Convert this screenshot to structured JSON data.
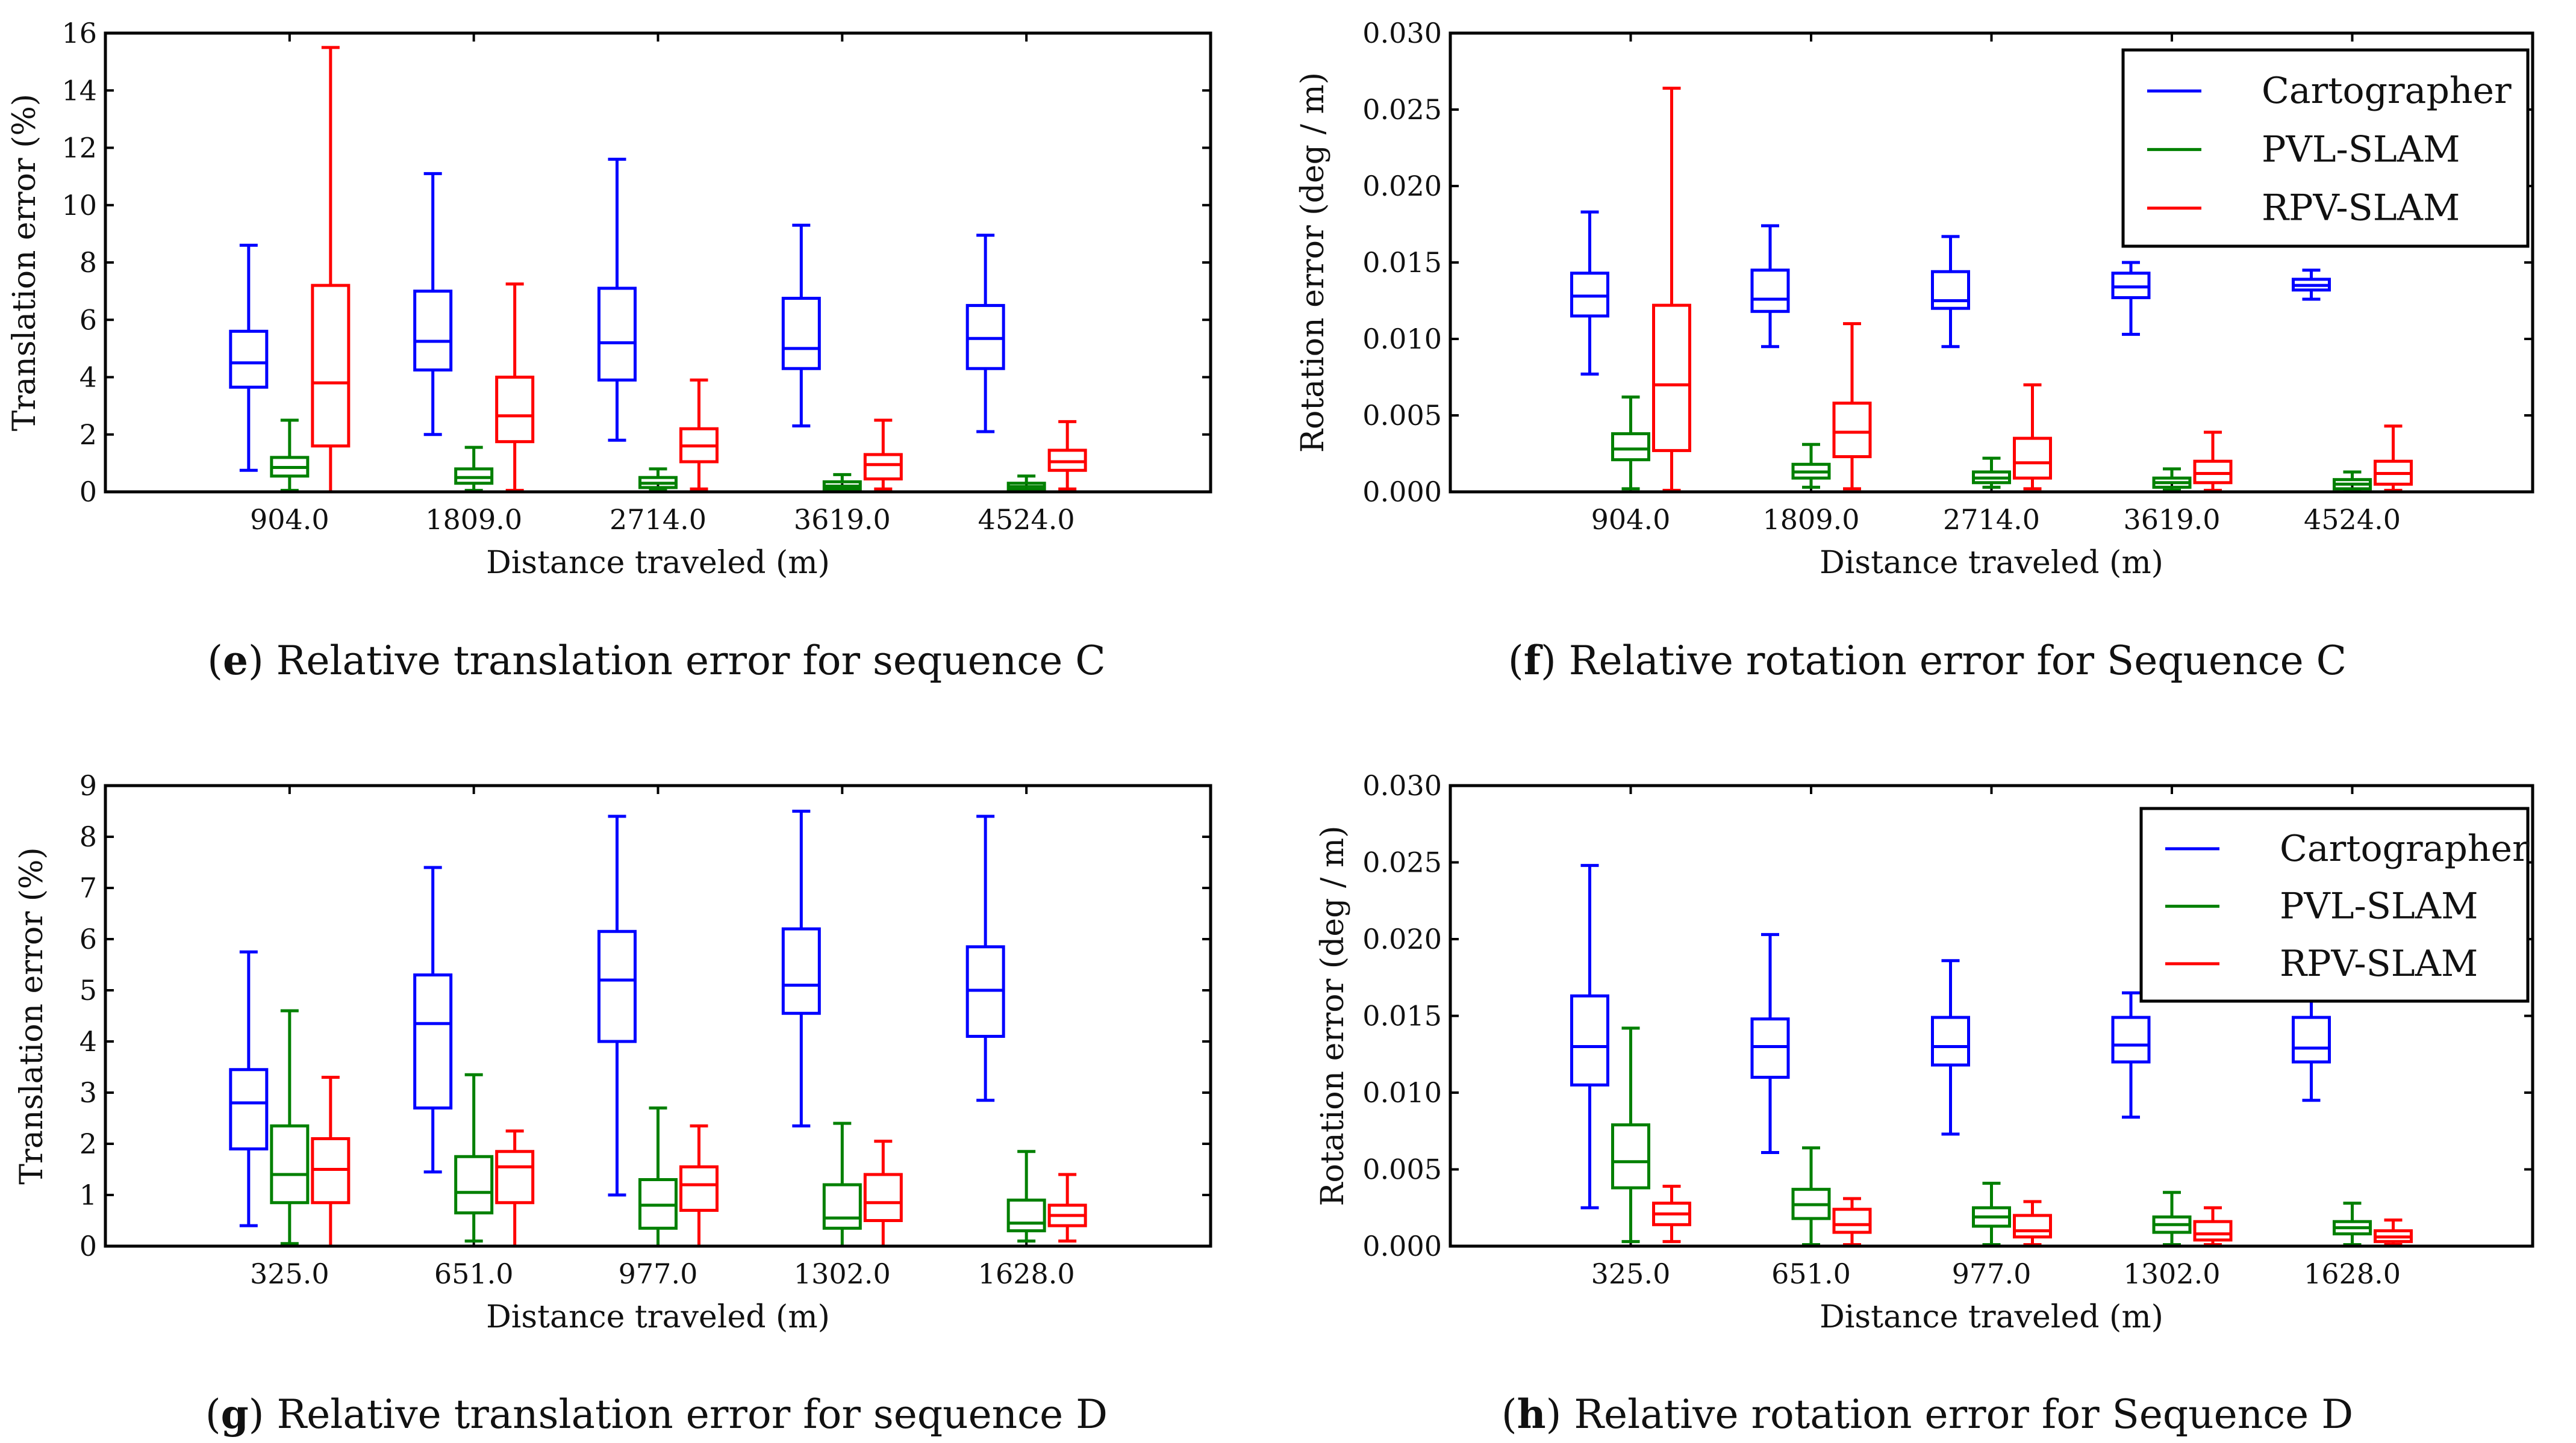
{
  "colors": {
    "cartographer": "#0000ff",
    "pvl": "#008000",
    "rpv": "#ff0000"
  },
  "legend": [
    "Cartographer",
    "PVL-SLAM",
    "RPV-SLAM"
  ],
  "captions": {
    "e": {
      "letter": "e",
      "text": ") Relative translation error for sequence C"
    },
    "f": {
      "letter": "f",
      "text": ") Relative rotation error for Sequence C"
    },
    "g": {
      "letter": "g",
      "text": ") Relative translation error for sequence D"
    },
    "h": {
      "letter": "h",
      "text": ") Relative rotation error for Sequence D"
    }
  },
  "chart_data": [
    {
      "id": "e",
      "type": "boxplot",
      "title": "(e) Relative translation error for sequence C",
      "xlabel": "Distance traveled (m)",
      "ylabel": "Translation error (%)",
      "ylim": [
        0,
        16
      ],
      "yticks": [
        "0",
        "2",
        "4",
        "6",
        "8",
        "10",
        "12",
        "14",
        "16"
      ],
      "categories": [
        "904.0",
        "1809.0",
        "2714.0",
        "3619.0",
        "4524.0"
      ],
      "legend": false,
      "series": [
        {
          "name": "Cartographer",
          "color": "#0000ff",
          "boxes": [
            {
              "min": 0.75,
              "q1": 3.65,
              "median": 4.5,
              "q3": 5.6,
              "max": 8.6
            },
            {
              "min": 2.0,
              "q1": 4.25,
              "median": 5.25,
              "q3": 7.0,
              "max": 11.1
            },
            {
              "min": 1.8,
              "q1": 3.9,
              "median": 5.2,
              "q3": 7.1,
              "max": 11.6
            },
            {
              "min": 2.3,
              "q1": 4.3,
              "median": 5.0,
              "q3": 6.75,
              "max": 9.3
            },
            {
              "min": 2.1,
              "q1": 4.3,
              "median": 5.35,
              "q3": 6.5,
              "max": 8.95
            }
          ]
        },
        {
          "name": "PVL-SLAM",
          "color": "#008000",
          "boxes": [
            {
              "min": 0.05,
              "q1": 0.55,
              "median": 0.85,
              "q3": 1.2,
              "max": 2.5
            },
            {
              "min": 0.05,
              "q1": 0.3,
              "median": 0.5,
              "q3": 0.8,
              "max": 1.55
            },
            {
              "min": 0.05,
              "q1": 0.15,
              "median": 0.3,
              "q3": 0.5,
              "max": 0.8
            },
            {
              "min": 0.02,
              "q1": 0.1,
              "median": 0.2,
              "q3": 0.35,
              "max": 0.6
            },
            {
              "min": 0.02,
              "q1": 0.08,
              "median": 0.18,
              "q3": 0.3,
              "max": 0.55
            }
          ]
        },
        {
          "name": "RPV-SLAM",
          "color": "#ff0000",
          "boxes": [
            {
              "min": 0.0,
              "q1": 1.6,
              "median": 3.8,
              "q3": 7.2,
              "max": 15.5
            },
            {
              "min": 0.05,
              "q1": 1.75,
              "median": 2.65,
              "q3": 4.0,
              "max": 7.25
            },
            {
              "min": 0.1,
              "q1": 1.05,
              "median": 1.6,
              "q3": 2.2,
              "max": 3.9
            },
            {
              "min": 0.1,
              "q1": 0.45,
              "median": 0.95,
              "q3": 1.3,
              "max": 2.5
            },
            {
              "min": 0.1,
              "q1": 0.75,
              "median": 1.05,
              "q3": 1.45,
              "max": 2.45
            }
          ]
        }
      ]
    },
    {
      "id": "f",
      "type": "boxplot",
      "title": "(f) Relative rotation error for Sequence C",
      "xlabel": "Distance traveled (m)",
      "ylabel": "Rotation error (deg / m)",
      "ylim": [
        0,
        0.03
      ],
      "yticks": [
        "0.000",
        "0.005",
        "0.010",
        "0.015",
        "0.020",
        "0.025",
        "0.030"
      ],
      "categories": [
        "904.0",
        "1809.0",
        "2714.0",
        "3619.0",
        "4524.0"
      ],
      "legend": true,
      "series": [
        {
          "name": "Cartographer",
          "color": "#0000ff",
          "boxes": [
            {
              "min": 0.0077,
              "q1": 0.0115,
              "median": 0.0128,
              "q3": 0.0143,
              "max": 0.0183
            },
            {
              "min": 0.0095,
              "q1": 0.0118,
              "median": 0.0126,
              "q3": 0.0145,
              "max": 0.0174
            },
            {
              "min": 0.0095,
              "q1": 0.012,
              "median": 0.0125,
              "q3": 0.0144,
              "max": 0.0167
            },
            {
              "min": 0.0103,
              "q1": 0.0127,
              "median": 0.0134,
              "q3": 0.0143,
              "max": 0.015
            },
            {
              "min": 0.0126,
              "q1": 0.0132,
              "median": 0.0135,
              "q3": 0.0139,
              "max": 0.0145
            }
          ]
        },
        {
          "name": "PVL-SLAM",
          "color": "#008000",
          "boxes": [
            {
              "min": 0.0002,
              "q1": 0.0021,
              "median": 0.0028,
              "q3": 0.0038,
              "max": 0.0062
            },
            {
              "min": 0.0003,
              "q1": 0.0009,
              "median": 0.0013,
              "q3": 0.0018,
              "max": 0.0031
            },
            {
              "min": 0.0003,
              "q1": 0.0006,
              "median": 0.0009,
              "q3": 0.0013,
              "max": 0.0022
            },
            {
              "min": 0.0001,
              "q1": 0.0003,
              "median": 0.0006,
              "q3": 0.0009,
              "max": 0.0015
            },
            {
              "min": 0.0001,
              "q1": 0.0002,
              "median": 0.0005,
              "q3": 0.0008,
              "max": 0.0013
            }
          ]
        },
        {
          "name": "RPV-SLAM",
          "color": "#ff0000",
          "boxes": [
            {
              "min": 0.0001,
              "q1": 0.0027,
              "median": 0.007,
              "q3": 0.0122,
              "max": 0.0264
            },
            {
              "min": 0.0002,
              "q1": 0.0023,
              "median": 0.0039,
              "q3": 0.0058,
              "max": 0.011
            },
            {
              "min": 0.0002,
              "q1": 0.0009,
              "median": 0.0019,
              "q3": 0.0035,
              "max": 0.007
            },
            {
              "min": 0.0001,
              "q1": 0.0006,
              "median": 0.0012,
              "q3": 0.002,
              "max": 0.0039
            },
            {
              "min": 0.0001,
              "q1": 0.0005,
              "median": 0.0012,
              "q3": 0.002,
              "max": 0.0043
            }
          ]
        }
      ]
    },
    {
      "id": "g",
      "type": "boxplot",
      "title": "(g) Relative translation error for sequence D",
      "xlabel": "Distance traveled (m)",
      "ylabel": "Translation error (%)",
      "ylim": [
        0,
        9
      ],
      "yticks": [
        "0",
        "1",
        "2",
        "3",
        "4",
        "5",
        "6",
        "7",
        "8",
        "9"
      ],
      "categories": [
        "325.0",
        "651.0",
        "977.0",
        "1302.0",
        "1628.0"
      ],
      "legend": false,
      "series": [
        {
          "name": "Cartographer",
          "color": "#0000ff",
          "boxes": [
            {
              "min": 0.4,
              "q1": 1.9,
              "median": 2.8,
              "q3": 3.45,
              "max": 5.75
            },
            {
              "min": 1.45,
              "q1": 2.7,
              "median": 4.35,
              "q3": 5.3,
              "max": 7.4
            },
            {
              "min": 1.0,
              "q1": 4.0,
              "median": 5.2,
              "q3": 6.15,
              "max": 8.4
            },
            {
              "min": 2.35,
              "q1": 4.55,
              "median": 5.1,
              "q3": 6.2,
              "max": 8.5
            },
            {
              "min": 2.85,
              "q1": 4.1,
              "median": 5.0,
              "q3": 5.85,
              "max": 8.4
            }
          ]
        },
        {
          "name": "PVL-SLAM",
          "color": "#008000",
          "boxes": [
            {
              "min": 0.05,
              "q1": 0.85,
              "median": 1.4,
              "q3": 2.35,
              "max": 4.6
            },
            {
              "min": 0.1,
              "q1": 0.65,
              "median": 1.05,
              "q3": 1.75,
              "max": 3.35
            },
            {
              "min": 0.0,
              "q1": 0.35,
              "median": 0.8,
              "q3": 1.3,
              "max": 2.7
            },
            {
              "min": 0.0,
              "q1": 0.35,
              "median": 0.55,
              "q3": 1.2,
              "max": 2.4
            },
            {
              "min": 0.1,
              "q1": 0.3,
              "median": 0.45,
              "q3": 0.9,
              "max": 1.85
            }
          ]
        },
        {
          "name": "RPV-SLAM",
          "color": "#ff0000",
          "boxes": [
            {
              "min": 0.0,
              "q1": 0.85,
              "median": 1.5,
              "q3": 2.1,
              "max": 3.3
            },
            {
              "min": 0.0,
              "q1": 0.85,
              "median": 1.55,
              "q3": 1.85,
              "max": 2.25
            },
            {
              "min": 0.0,
              "q1": 0.7,
              "median": 1.2,
              "q3": 1.55,
              "max": 2.35
            },
            {
              "min": 0.0,
              "q1": 0.5,
              "median": 0.85,
              "q3": 1.4,
              "max": 2.05
            },
            {
              "min": 0.1,
              "q1": 0.4,
              "median": 0.6,
              "q3": 0.8,
              "max": 1.4
            }
          ]
        }
      ]
    },
    {
      "id": "h",
      "type": "boxplot",
      "title": "(h) Relative rotation error for Sequence D",
      "xlabel": "Distance traveled (m)",
      "ylabel": "Rotation error (deg / m)",
      "ylim": [
        0,
        0.03
      ],
      "yticks": [
        "0.000",
        "0.005",
        "0.010",
        "0.015",
        "0.020",
        "0.025",
        "0.030"
      ],
      "categories": [
        "325.0",
        "651.0",
        "977.0",
        "1302.0",
        "1628.0"
      ],
      "legend": true,
      "series": [
        {
          "name": "Cartographer",
          "color": "#0000ff",
          "boxes": [
            {
              "min": 0.0025,
              "q1": 0.0105,
              "median": 0.013,
              "q3": 0.0163,
              "max": 0.0248
            },
            {
              "min": 0.0061,
              "q1": 0.011,
              "median": 0.013,
              "q3": 0.0148,
              "max": 0.0203
            },
            {
              "min": 0.0073,
              "q1": 0.0118,
              "median": 0.013,
              "q3": 0.0149,
              "max": 0.0186
            },
            {
              "min": 0.0084,
              "q1": 0.012,
              "median": 0.0131,
              "q3": 0.0149,
              "max": 0.0165
            },
            {
              "min": 0.0095,
              "q1": 0.012,
              "median": 0.0129,
              "q3": 0.0149,
              "max": 0.0165
            }
          ]
        },
        {
          "name": "PVL-SLAM",
          "color": "#008000",
          "boxes": [
            {
              "min": 0.0003,
              "q1": 0.0038,
              "median": 0.0055,
              "q3": 0.0079,
              "max": 0.0142
            },
            {
              "min": 0.0001,
              "q1": 0.0018,
              "median": 0.0027,
              "q3": 0.0037,
              "max": 0.0064
            },
            {
              "min": 0.0001,
              "q1": 0.0013,
              "median": 0.0019,
              "q3": 0.0025,
              "max": 0.0041
            },
            {
              "min": 0.0001,
              "q1": 0.0009,
              "median": 0.0014,
              "q3": 0.0019,
              "max": 0.0035
            },
            {
              "min": 0.0001,
              "q1": 0.0008,
              "median": 0.0012,
              "q3": 0.0016,
              "max": 0.0028
            }
          ]
        },
        {
          "name": "RPV-SLAM",
          "color": "#ff0000",
          "boxes": [
            {
              "min": 0.0003,
              "q1": 0.0014,
              "median": 0.0021,
              "q3": 0.0028,
              "max": 0.0039
            },
            {
              "min": 0.0001,
              "q1": 0.0009,
              "median": 0.0014,
              "q3": 0.0024,
              "max": 0.0031
            },
            {
              "min": 0.0001,
              "q1": 0.0006,
              "median": 0.001,
              "q3": 0.002,
              "max": 0.0029
            },
            {
              "min": 0.0001,
              "q1": 0.0004,
              "median": 0.0008,
              "q3": 0.0016,
              "max": 0.0025
            },
            {
              "min": 0.0001,
              "q1": 0.0003,
              "median": 0.0006,
              "q3": 0.001,
              "max": 0.0017
            }
          ]
        }
      ]
    }
  ]
}
